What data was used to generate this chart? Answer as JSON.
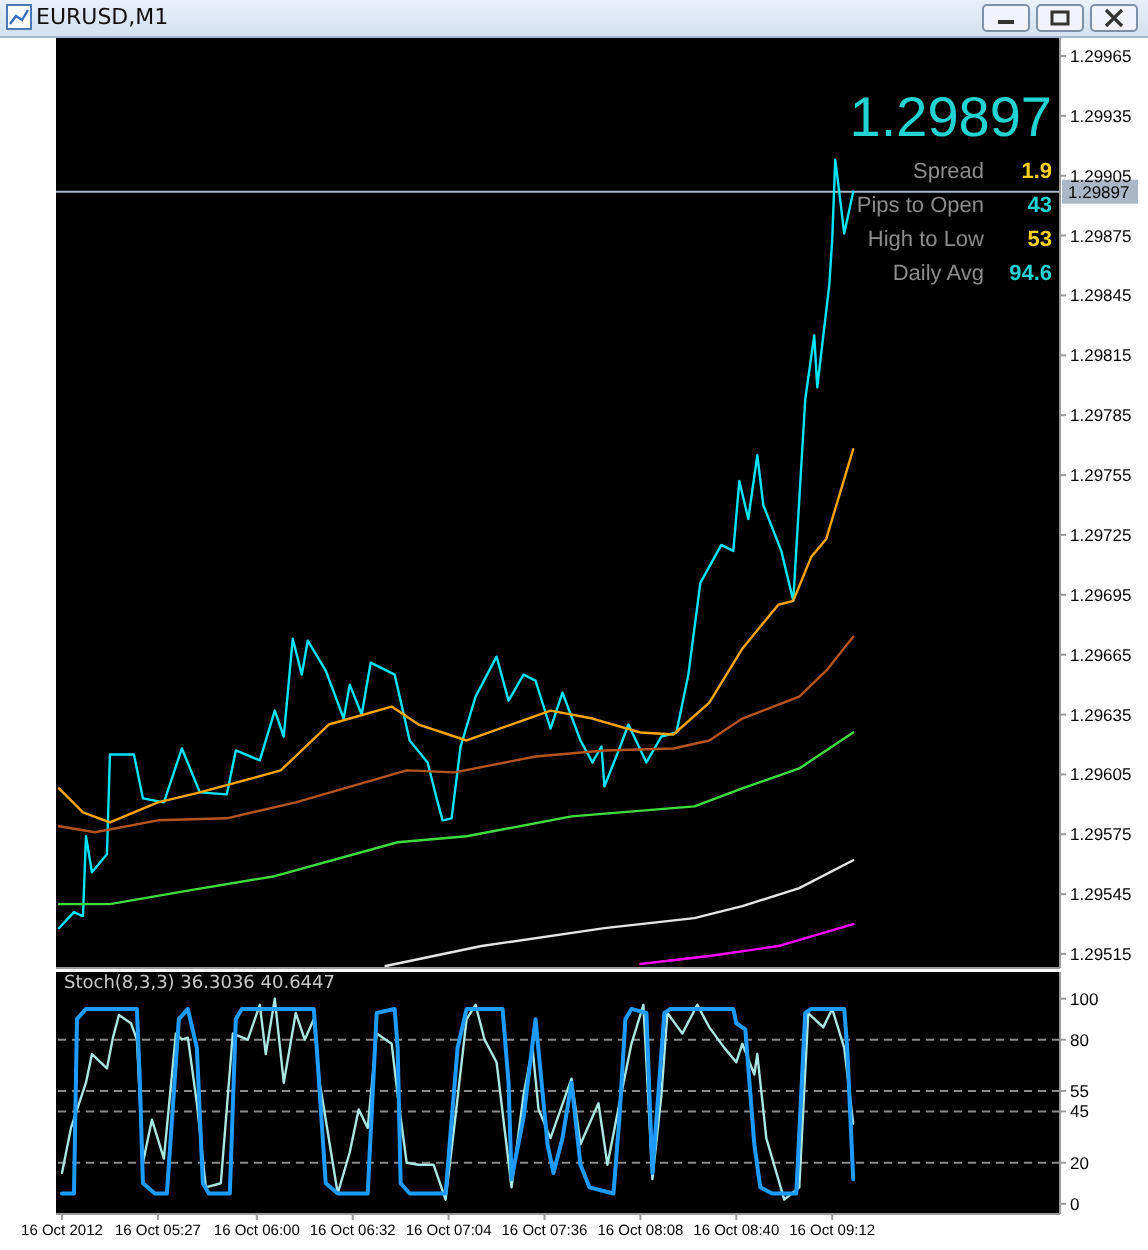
{
  "chart_data": [
    {
      "type": "line",
      "title": "EURUSD,M1",
      "xlim": [
        "2012-10-16T04:53",
        "2012-10-16T10:28"
      ],
      "ylim": [
        1.29508,
        1.29974
      ],
      "yticks": [
        1.29515,
        1.29545,
        1.29575,
        1.29605,
        1.29635,
        1.29665,
        1.29695,
        1.29725,
        1.29755,
        1.29785,
        1.29815,
        1.29845,
        1.29875,
        1.29905,
        1.29935,
        1.29965
      ],
      "tick_labels": "y",
      "series": [
        {
          "color": "#00e5ff",
          "x": [
            "2012-10-16T04:54",
            "2012-10-16T04:59",
            "2012-10-16T05:02",
            "2012-10-16T05:03",
            "2012-10-16T05:05",
            "2012-10-16T05:10",
            "2012-10-16T05:11",
            "2012-10-16T05:19",
            "2012-10-16T05:22",
            "2012-10-16T05:29",
            "2012-10-16T05:35",
            "2012-10-16T05:41",
            "2012-10-16T05:50",
            "2012-10-16T05:53",
            "2012-10-16T06:01",
            "2012-10-16T06:06",
            "2012-10-16T06:09",
            "2012-10-16T06:12",
            "2012-10-16T06:15",
            "2012-10-16T06:17",
            "2012-10-16T06:23",
            "2012-10-16T06:29",
            "2012-10-16T06:31",
            "2012-10-16T06:35",
            "2012-10-16T06:38",
            "2012-10-16T06:46",
            "2012-10-16T06:51",
            "2012-10-16T06:57",
            "2012-10-16T07:00",
            "2012-10-16T07:02",
            "2012-10-16T07:05",
            "2012-10-16T07:08",
            "2012-10-16T07:13",
            "2012-10-16T07:20",
            "2012-10-16T07:24",
            "2012-10-16T07:29",
            "2012-10-16T07:33",
            "2012-10-16T07:38",
            "2012-10-16T07:42",
            "2012-10-16T07:48",
            "2012-10-16T07:52",
            "2012-10-16T07:55",
            "2012-10-16T07:56",
            "2012-10-16T08:01",
            "2012-10-16T08:04",
            "2012-10-16T08:10",
            "2012-10-16T08:15",
            "2012-10-16T08:20",
            "2012-10-16T08:24",
            "2012-10-16T08:28",
            "2012-10-16T08:35",
            "2012-10-16T08:39",
            "2012-10-16T08:41",
            "2012-10-16T08:44",
            "2012-10-16T08:47",
            "2012-10-16T08:49",
            "2012-10-16T08:55",
            "2012-10-16T08:59",
            "2012-10-16T09:03",
            "2012-10-16T09:06",
            "2012-10-16T09:07",
            "2012-10-16T09:11",
            "2012-10-16T09:12",
            "2012-10-16T09:13",
            "2012-10-16T09:14",
            "2012-10-16T09:16",
            "2012-10-16T09:19"
          ],
          "values": [
            1.29528,
            1.29536,
            1.29534,
            1.29574,
            1.29556,
            1.29565,
            1.29615,
            1.29615,
            1.29593,
            1.29591,
            1.29618,
            1.29596,
            1.29595,
            1.29617,
            1.29612,
            1.29637,
            1.29624,
            1.29673,
            1.29655,
            1.29672,
            1.29657,
            1.29633,
            1.2965,
            1.29635,
            1.29661,
            1.29655,
            1.29622,
            1.29611,
            1.29593,
            1.29582,
            1.29583,
            1.29619,
            1.29644,
            1.29664,
            1.29642,
            1.29655,
            1.29652,
            1.29628,
            1.29646,
            1.29622,
            1.29611,
            1.29619,
            1.29599,
            1.29618,
            1.2963,
            1.29611,
            1.29624,
            1.29626,
            1.29655,
            1.29701,
            1.2972,
            1.29717,
            1.29752,
            1.29733,
            1.29765,
            1.2974,
            1.29717,
            1.29692,
            1.29793,
            1.29825,
            1.29799,
            1.2985,
            1.29873,
            1.29913,
            1.29901,
            1.29876,
            1.29897
          ]
        },
        {
          "color": "#ffa500",
          "x": [
            "2012-10-16T04:54",
            "2012-10-16T05:02",
            "2012-10-16T05:11",
            "2012-10-16T05:27",
            "2012-10-16T05:41",
            "2012-10-16T06:08",
            "2012-10-16T06:24",
            "2012-10-16T06:45",
            "2012-10-16T06:54",
            "2012-10-16T07:10",
            "2012-10-16T07:38",
            "2012-10-16T07:52",
            "2012-10-16T08:08",
            "2012-10-16T08:19",
            "2012-10-16T08:31",
            "2012-10-16T08:42",
            "2012-10-16T08:54",
            "2012-10-16T08:59",
            "2012-10-16T09:05",
            "2012-10-16T09:10",
            "2012-10-16T09:19"
          ],
          "values": [
            1.29598,
            1.29586,
            1.29581,
            1.29591,
            1.29596,
            1.29607,
            1.2963,
            1.29639,
            1.2963,
            1.29622,
            1.29637,
            1.29633,
            1.29626,
            1.29625,
            1.29641,
            1.29668,
            1.2969,
            1.29692,
            1.29714,
            1.29723,
            1.29768
          ]
        },
        {
          "color": "#b5541c",
          "x": [
            "2012-10-16T04:54",
            "2012-10-16T05:06",
            "2012-10-16T05:27",
            "2012-10-16T05:50",
            "2012-10-16T06:13",
            "2012-10-16T06:50",
            "2012-10-16T07:06",
            "2012-10-16T07:33",
            "2012-10-16T07:56",
            "2012-10-16T08:19",
            "2012-10-16T08:31",
            "2012-10-16T08:42",
            "2012-10-16T09:01",
            "2012-10-16T09:10",
            "2012-10-16T09:19"
          ],
          "values": [
            1.29579,
            1.29576,
            1.29582,
            1.29583,
            1.29591,
            1.29607,
            1.29606,
            1.29614,
            1.29617,
            1.29618,
            1.29622,
            1.29633,
            1.29644,
            1.29657,
            1.29674
          ]
        },
        {
          "color": "#3fdc3f",
          "x": [
            "2012-10-16T04:54",
            "2012-10-16T05:11",
            "2012-10-16T05:38",
            "2012-10-16T06:06",
            "2012-10-16T06:47",
            "2012-10-16T07:10",
            "2012-10-16T07:45",
            "2012-10-16T08:26",
            "2012-10-16T08:42",
            "2012-10-16T09:01",
            "2012-10-16T09:19"
          ],
          "values": [
            1.2954,
            1.2954,
            1.29547,
            1.29554,
            1.29571,
            1.29574,
            1.29584,
            1.29589,
            1.29598,
            1.29608,
            1.29626
          ]
        },
        {
          "color": "#e6e6e6",
          "x": [
            "2012-10-16T06:43",
            "2012-10-16T07:15",
            "2012-10-16T07:56",
            "2012-10-16T08:26",
            "2012-10-16T08:42",
            "2012-10-16T09:01",
            "2012-10-16T09:19"
          ],
          "values": [
            1.29509,
            1.29519,
            1.29528,
            1.29533,
            1.29539,
            1.29548,
            1.29562
          ]
        },
        {
          "color": "#ff00ff",
          "x": [
            "2012-10-16T08:08",
            "2012-10-16T08:31",
            "2012-10-16T08:54",
            "2012-10-16T09:19"
          ],
          "values": [
            1.2951,
            1.29514,
            1.29519,
            1.2953
          ]
        }
      ],
      "ref_lines": [
        {
          "axis": "y",
          "value": 1.29897,
          "label": "1.29897",
          "color": "#a9b7c6"
        }
      ],
      "annotations": [
        "1.29897",
        "Spread",
        "1.9",
        "Pips to Open",
        "43",
        "High to Low",
        "53",
        "Daily Avg",
        "94.6"
      ]
    },
    {
      "type": "line",
      "title": "Stoch(8,3,3) 36.3036 40.6447",
      "xlim": [
        "2012-10-16T04:53",
        "2012-10-16T10:28"
      ],
      "xticks": [
        {
          "value": "2012-10-16T04:55",
          "label": "16 Oct 2012"
        },
        {
          "value": "2012-10-16T05:27",
          "label": "16 Oct 05:27"
        },
        {
          "value": "2012-10-16T06:00",
          "label": "16 Oct 06:00"
        },
        {
          "value": "2012-10-16T06:32",
          "label": "16 Oct 06:32"
        },
        {
          "value": "2012-10-16T07:04",
          "label": "16 Oct 07:04"
        },
        {
          "value": "2012-10-16T07:36",
          "label": "16 Oct 07:36"
        },
        {
          "value": "2012-10-16T08:08",
          "label": "16 Oct 08:08"
        },
        {
          "value": "2012-10-16T08:40",
          "label": "16 Oct 08:40"
        },
        {
          "value": "2012-10-16T09:12",
          "label": "16 Oct 09:12"
        }
      ],
      "ylim": [
        -5,
        113
      ],
      "yticks": [
        0,
        20,
        45,
        55,
        80,
        100
      ],
      "series": [
        {
          "color": "#a8e8e0",
          "x": [
            "2012-10-16T04:55",
            "2012-10-16T04:58",
            "2012-10-16T05:03",
            "2012-10-16T05:05",
            "2012-10-16T05:10",
            "2012-10-16T05:12",
            "2012-10-16T05:14",
            "2012-10-16T05:18",
            "2012-10-16T05:20",
            "2012-10-16T05:22",
            "2012-10-16T05:25",
            "2012-10-16T05:29",
            "2012-10-16T05:33",
            "2012-10-16T05:35",
            "2012-10-16T05:37",
            "2012-10-16T05:40",
            "2012-10-16T05:43",
            "2012-10-16T05:48",
            "2012-10-16T05:52",
            "2012-10-16T05:57",
            "2012-10-16T06:01",
            "2012-10-16T06:03",
            "2012-10-16T06:06",
            "2012-10-16T06:09",
            "2012-10-16T06:13",
            "2012-10-16T06:16",
            "2012-10-16T06:19",
            "2012-10-16T06:21",
            "2012-10-16T06:27",
            "2012-10-16T06:31",
            "2012-10-16T06:34",
            "2012-10-16T06:37",
            "2012-10-16T06:40",
            "2012-10-16T06:45",
            "2012-10-16T06:47",
            "2012-10-16T06:50",
            "2012-10-16T06:54",
            "2012-10-16T06:59",
            "2012-10-16T07:03",
            "2012-10-16T07:06",
            "2012-10-16T07:10",
            "2012-10-16T07:13",
            "2012-10-16T07:16",
            "2012-10-16T07:20",
            "2012-10-16T07:25",
            "2012-10-16T07:29",
            "2012-10-16T07:32",
            "2012-10-16T07:34",
            "2012-10-16T07:38",
            "2012-10-16T07:45",
            "2012-10-16T07:48",
            "2012-10-16T07:54",
            "2012-10-16T07:57",
            "2012-10-16T08:01",
            "2012-10-16T08:05",
            "2012-10-16T08:09",
            "2012-10-16T08:12",
            "2012-10-16T08:15",
            "2012-10-16T08:17",
            "2012-10-16T08:22",
            "2012-10-16T08:27",
            "2012-10-16T08:31",
            "2012-10-16T08:36",
            "2012-10-16T08:40",
            "2012-10-16T08:42",
            "2012-10-16T08:46",
            "2012-10-16T08:47",
            "2012-10-16T08:50",
            "2012-10-16T08:56",
            "2012-10-16T09:01",
            "2012-10-16T09:04",
            "2012-10-16T09:09",
            "2012-10-16T09:12",
            "2012-10-16T09:16",
            "2012-10-16T09:19"
          ],
          "values": [
            15,
            37,
            59,
            73,
            66,
            81,
            92,
            88,
            80,
            20,
            41,
            22,
            83,
            80,
            81,
            49,
            8,
            10,
            83,
            80,
            97,
            73,
            100,
            59,
            93,
            80,
            90,
            59,
            5,
            25,
            46,
            37,
            83,
            78,
            53,
            20,
            19,
            19,
            2,
            39,
            90,
            97,
            80,
            69,
            8,
            53,
            76,
            46,
            32,
            61,
            29,
            49,
            19,
            49,
            78,
            97,
            12,
            53,
            93,
            83,
            97,
            86,
            76,
            69,
            78,
            63,
            73,
            32,
            2,
            8,
            93,
            86,
            95,
            76,
            39
          ]
        },
        {
          "color": "#1e9bff",
          "x": [
            "2012-10-16T04:55",
            "2012-10-16T04:59",
            "2012-10-16T05:00",
            "2012-10-16T05:03",
            "2012-10-16T05:20",
            "2012-10-16T05:21",
            "2012-10-16T05:22",
            "2012-10-16T05:26",
            "2012-10-16T05:30",
            "2012-10-16T05:34",
            "2012-10-16T05:37",
            "2012-10-16T05:40",
            "2012-10-16T05:42",
            "2012-10-16T05:44",
            "2012-10-16T05:51",
            "2012-10-16T05:53",
            "2012-10-16T05:55",
            "2012-10-16T06:19",
            "2012-10-16T06:20",
            "2012-10-16T06:23",
            "2012-10-16T06:27",
            "2012-10-16T06:37",
            "2012-10-16T06:40",
            "2012-10-16T06:46",
            "2012-10-16T06:47",
            "2012-10-16T06:48",
            "2012-10-16T06:51",
            "2012-10-16T07:03",
            "2012-10-16T07:07",
            "2012-10-16T07:10",
            "2012-10-16T07:22",
            "2012-10-16T07:24",
            "2012-10-16T07:25",
            "2012-10-16T07:29",
            "2012-10-16T07:33",
            "2012-10-16T07:37",
            "2012-10-16T07:39",
            "2012-10-16T07:42",
            "2012-10-16T07:45",
            "2012-10-16T07:48",
            "2012-10-16T07:51",
            "2012-10-16T07:59",
            "2012-10-16T08:01",
            "2012-10-16T08:03",
            "2012-10-16T08:05",
            "2012-10-16T08:10",
            "2012-10-16T08:12",
            "2012-10-16T08:16",
            "2012-10-16T08:18",
            "2012-10-16T08:39",
            "2012-10-16T08:40",
            "2012-10-16T08:43",
            "2012-10-16T08:46",
            "2012-10-16T08:48",
            "2012-10-16T08:52",
            "2012-10-16T09:00",
            "2012-10-16T09:03",
            "2012-10-16T09:05",
            "2012-10-16T09:16",
            "2012-10-16T09:17",
            "2012-10-16T09:19"
          ],
          "values": [
            5,
            5,
            90,
            95,
            95,
            59,
            10,
            5,
            5,
            90,
            95,
            76,
            10,
            5,
            5,
            90,
            95,
            95,
            76,
            10,
            5,
            5,
            93,
            95,
            76,
            10,
            5,
            5,
            76,
            95,
            95,
            59,
            12,
            42,
            90,
            29,
            15,
            32,
            59,
            19,
            8,
            5,
            42,
            90,
            95,
            93,
            15,
            93,
            95,
            95,
            88,
            85,
            29,
            8,
            5,
            5,
            93,
            95,
            95,
            76,
            12
          ]
        }
      ],
      "ref_lines": [
        {
          "axis": "y",
          "value": 20,
          "color": "#8a8a8a",
          "line_style": "dashed"
        },
        {
          "axis": "y",
          "value": 45,
          "color": "#8a8a8a",
          "line_style": "dashed"
        },
        {
          "axis": "y",
          "value": 55,
          "color": "#8a8a8a",
          "line_style": "dashed"
        },
        {
          "axis": "y",
          "value": 80,
          "color": "#8a8a8a",
          "line_style": "dashed"
        }
      ]
    }
  ]
}
